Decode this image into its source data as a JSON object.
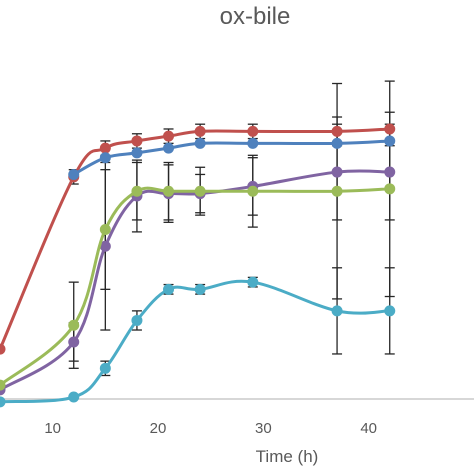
{
  "chart_data": {
    "type": "line",
    "title": "ox-bile",
    "xlabel": "Time (h)",
    "ylabel": "",
    "x_ticks": [
      10,
      20,
      30,
      40
    ],
    "xlim": [
      5,
      50
    ],
    "ylim": [
      -0.5,
      14.5
    ],
    "grid": false,
    "legend": "none",
    "series": [
      {
        "color": "#c0504d",
        "points": [
          {
            "x": 5,
            "y": 2.0,
            "err": 0
          },
          {
            "x": 12,
            "y": 9.2,
            "err": 0.3
          },
          {
            "x": 15,
            "y": 10.4,
            "err": 0.3
          },
          {
            "x": 18,
            "y": 10.7,
            "err": 0.3
          },
          {
            "x": 21,
            "y": 10.9,
            "err": 0.3
          },
          {
            "x": 24,
            "y": 11.1,
            "err": 0.3
          },
          {
            "x": 29,
            "y": 11.1,
            "err": 0.3
          },
          {
            "x": 37,
            "y": 11.1,
            "err": 0.6
          },
          {
            "x": 42,
            "y": 11.2,
            "err": 0.7
          }
        ]
      },
      {
        "color": "#4f81bd",
        "points": [
          {
            "x": 12,
            "y": 9.3,
            "err": 0
          },
          {
            "x": 15,
            "y": 10.0,
            "err": 0
          },
          {
            "x": 18,
            "y": 10.2,
            "err": 0
          },
          {
            "x": 21,
            "y": 10.4,
            "err": 0
          },
          {
            "x": 24,
            "y": 10.6,
            "err": 0
          },
          {
            "x": 29,
            "y": 10.6,
            "err": 0
          },
          {
            "x": 37,
            "y": 10.6,
            "err": 0
          },
          {
            "x": 42,
            "y": 10.7,
            "err": 0
          }
        ]
      },
      {
        "color": "#8064a2",
        "points": [
          {
            "x": 5,
            "y": 0.3,
            "err": 0
          },
          {
            "x": 12,
            "y": 2.3,
            "err": 0.8
          },
          {
            "x": 15,
            "y": 6.3,
            "err": 3.5
          },
          {
            "x": 18,
            "y": 8.4,
            "err": 1.5
          },
          {
            "x": 21,
            "y": 8.5,
            "err": 1.2
          },
          {
            "x": 24,
            "y": 8.5,
            "err": 0.8
          },
          {
            "x": 29,
            "y": 8.8,
            "err": 1.2
          },
          {
            "x": 37,
            "y": 9.4,
            "err": 2.0
          },
          {
            "x": 42,
            "y": 9.4,
            "err": 2.0
          }
        ]
      },
      {
        "color": "#9bbb59",
        "points": [
          {
            "x": 5,
            "y": 0.5,
            "err": 0
          },
          {
            "x": 12,
            "y": 3.0,
            "err": 1.8
          },
          {
            "x": 15,
            "y": 7.0,
            "err": 2.5
          },
          {
            "x": 18,
            "y": 8.6,
            "err": 1.2
          },
          {
            "x": 21,
            "y": 8.6,
            "err": 1.2
          },
          {
            "x": 24,
            "y": 8.6,
            "err": 1.0
          },
          {
            "x": 29,
            "y": 8.6,
            "err": 1.5
          },
          {
            "x": 37,
            "y": 8.6,
            "err": 4.5
          },
          {
            "x": 42,
            "y": 8.7,
            "err": 4.5
          }
        ]
      },
      {
        "color": "#4bacc6",
        "points": [
          {
            "x": 5,
            "y": -0.2,
            "err": 0
          },
          {
            "x": 12,
            "y": 0.0,
            "err": 0
          },
          {
            "x": 15,
            "y": 1.2,
            "err": 0.3
          },
          {
            "x": 18,
            "y": 3.2,
            "err": 0.4
          },
          {
            "x": 21,
            "y": 4.5,
            "err": 0.2
          },
          {
            "x": 24,
            "y": 4.5,
            "err": 0.2
          },
          {
            "x": 29,
            "y": 4.8,
            "err": 0.2
          },
          {
            "x": 37,
            "y": 3.6,
            "err": 1.8
          },
          {
            "x": 42,
            "y": 3.6,
            "err": 1.8
          }
        ]
      }
    ]
  }
}
